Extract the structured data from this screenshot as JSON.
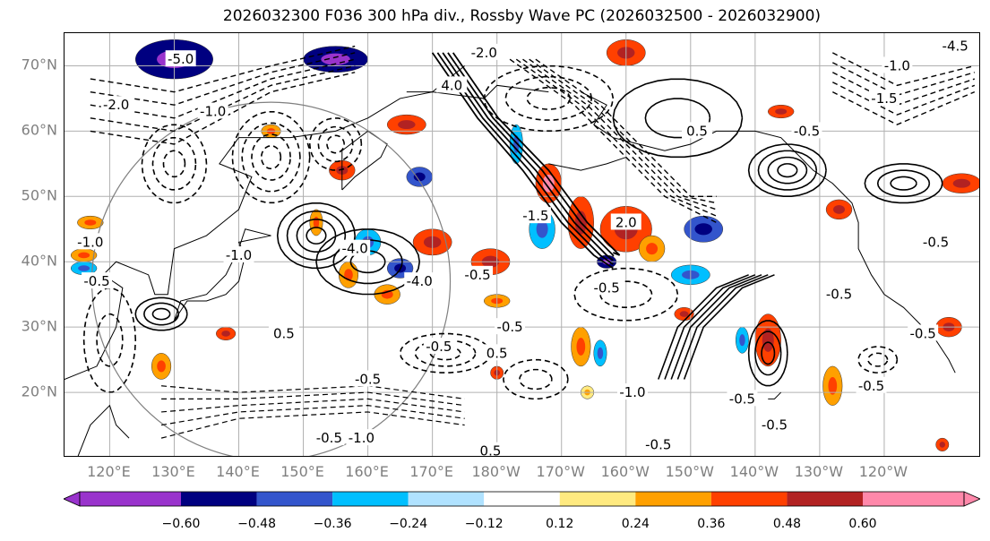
{
  "title": "2026032300 F036 300 hPa div., Rossby Wave PC (2026032500 - 2026032900)",
  "map": {
    "lat_labels": [
      "70°N",
      "60°N",
      "50°N",
      "40°N",
      "30°N",
      "20°N"
    ],
    "lat_values": [
      70,
      60,
      50,
      40,
      30,
      20
    ],
    "lon_labels": [
      "120°E",
      "130°E",
      "140°E",
      "150°E",
      "160°E",
      "170°E",
      "180°W",
      "170°W",
      "160°W",
      "150°W",
      "140°W",
      "130°W",
      "120°W"
    ],
    "lon_values": [
      120,
      130,
      140,
      150,
      160,
      170,
      180,
      190,
      200,
      210,
      220,
      230,
      240
    ],
    "lon_range": [
      113,
      255
    ],
    "lat_range": [
      10,
      75
    ],
    "contour_labels": [
      {
        "text": "-2.0",
        "lon": 121,
        "lat": 64
      },
      {
        "text": "-5.0",
        "lon": 131,
        "lat": 71
      },
      {
        "text": "-1.0",
        "lon": 136,
        "lat": 63
      },
      {
        "text": "-1.0",
        "lon": 117,
        "lat": 43
      },
      {
        "text": "-0.5",
        "lon": 118,
        "lat": 37
      },
      {
        "text": "-4.0",
        "lon": 158,
        "lat": 42
      },
      {
        "text": "-4.0",
        "lon": 168,
        "lat": 37
      },
      {
        "text": "-0.5",
        "lon": 177,
        "lat": 38
      },
      {
        "text": "-0.5",
        "lon": 171,
        "lat": 27
      },
      {
        "text": "-0.5",
        "lon": 160,
        "lat": 22
      },
      {
        "text": "0.5",
        "lon": 180,
        "lat": 26
      },
      {
        "text": "0.5",
        "lon": 147,
        "lat": 29
      },
      {
        "text": "-0.5",
        "lon": 197,
        "lat": 36
      },
      {
        "text": "-0.5",
        "lon": 182,
        "lat": 30
      },
      {
        "text": "-1.0",
        "lon": 201,
        "lat": 20
      },
      {
        "text": "-0.5",
        "lon": 218,
        "lat": 19
      },
      {
        "text": "-0.5",
        "lon": 238,
        "lat": 21
      },
      {
        "text": "-0.5",
        "lon": 223,
        "lat": 15
      },
      {
        "text": "-0.5",
        "lon": 233,
        "lat": 35
      },
      {
        "text": "-0.5",
        "lon": 246,
        "lat": 29
      },
      {
        "text": "-0.5",
        "lon": 228,
        "lat": 60
      },
      {
        "text": "-1.5",
        "lon": 240,
        "lat": 65
      },
      {
        "text": "-1.0",
        "lon": 242,
        "lat": 70
      },
      {
        "text": "-4.5",
        "lon": 251,
        "lat": 73
      },
      {
        "text": "0.5",
        "lon": 211,
        "lat": 60
      },
      {
        "text": "2.0",
        "lon": 200,
        "lat": 46
      },
      {
        "text": "-1.5",
        "lon": 186,
        "lat": 47
      },
      {
        "text": "-2.0",
        "lon": 178,
        "lat": 72
      },
      {
        "text": "4.0",
        "lon": 173,
        "lat": 67
      },
      {
        "text": "-0.5",
        "lon": 154,
        "lat": 13
      },
      {
        "text": "-1.0",
        "lon": 159,
        "lat": 13
      },
      {
        "text": "0.5",
        "lon": 179,
        "lat": 11
      },
      {
        "text": "-0.5",
        "lon": 205,
        "lat": 12
      },
      {
        "text": "-1.0",
        "lon": 140,
        "lat": 41
      },
      {
        "text": "-0.5",
        "lon": 248,
        "lat": 43
      }
    ],
    "shaded_regions": [
      {
        "lon": 130,
        "lat": 71,
        "rx": 6,
        "ry": 3,
        "value": -0.5
      },
      {
        "lon": 155,
        "lat": 71,
        "rx": 5,
        "ry": 2,
        "value": -0.5
      },
      {
        "lon": 200,
        "lat": 72,
        "rx": 3,
        "ry": 2,
        "value": 0.4
      },
      {
        "lon": 166,
        "lat": 61,
        "rx": 3,
        "ry": 1.5,
        "value": 0.4
      },
      {
        "lon": 183,
        "lat": 58,
        "rx": 1,
        "ry": 3,
        "value": -0.3
      },
      {
        "lon": 188,
        "lat": 52,
        "rx": 2,
        "ry": 3,
        "value": 0.45
      },
      {
        "lon": 187,
        "lat": 45,
        "rx": 2,
        "ry": 3,
        "value": -0.3
      },
      {
        "lon": 193,
        "lat": 46,
        "rx": 2,
        "ry": 4,
        "value": 0.4
      },
      {
        "lon": 200,
        "lat": 45,
        "rx": 4,
        "ry": 3.5,
        "value": 0.4
      },
      {
        "lon": 204,
        "lat": 42,
        "rx": 2,
        "ry": 2,
        "value": 0.3
      },
      {
        "lon": 197,
        "lat": 40,
        "rx": 1.5,
        "ry": 1,
        "value": -0.6
      },
      {
        "lon": 212,
        "lat": 45,
        "rx": 3,
        "ry": 2,
        "value": -0.4
      },
      {
        "lon": 210,
        "lat": 38,
        "rx": 3,
        "ry": 1.5,
        "value": -0.3
      },
      {
        "lon": 179,
        "lat": 40,
        "rx": 3,
        "ry": 2,
        "value": 0.4
      },
      {
        "lon": 170,
        "lat": 43,
        "rx": 3,
        "ry": 2,
        "value": 0.4
      },
      {
        "lon": 160,
        "lat": 43,
        "rx": 2,
        "ry": 2,
        "value": -0.3
      },
      {
        "lon": 165,
        "lat": 39,
        "rx": 2,
        "ry": 1.5,
        "value": -0.4
      },
      {
        "lon": 168,
        "lat": 53,
        "rx": 2,
        "ry": 1.5,
        "value": -0.4
      },
      {
        "lon": 156,
        "lat": 54,
        "rx": 2,
        "ry": 1.5,
        "value": 0.4
      },
      {
        "lon": 157,
        "lat": 38,
        "rx": 1.5,
        "ry": 2,
        "value": 0.3
      },
      {
        "lon": 163,
        "lat": 35,
        "rx": 2,
        "ry": 1.5,
        "value": 0.3
      },
      {
        "lon": 180,
        "lat": 34,
        "rx": 2,
        "ry": 1,
        "value": 0.3
      },
      {
        "lon": 193,
        "lat": 27,
        "rx": 1.5,
        "ry": 3,
        "value": 0.35
      },
      {
        "lon": 196,
        "lat": 26,
        "rx": 1,
        "ry": 2,
        "value": -0.3
      },
      {
        "lon": 222,
        "lat": 28,
        "rx": 2,
        "ry": 4,
        "value": 0.4
      },
      {
        "lon": 218,
        "lat": 28,
        "rx": 1,
        "ry": 2,
        "value": -0.3
      },
      {
        "lon": 232,
        "lat": 21,
        "rx": 1.5,
        "ry": 3,
        "value": 0.3
      },
      {
        "lon": 250,
        "lat": 30,
        "rx": 2,
        "ry": 1.5,
        "value": 0.4
      },
      {
        "lon": 252,
        "lat": 52,
        "rx": 3,
        "ry": 1.5,
        "value": 0.4
      },
      {
        "lon": 233,
        "lat": 48,
        "rx": 2,
        "ry": 1.5,
        "value": 0.4
      },
      {
        "lon": 224,
        "lat": 63,
        "rx": 2,
        "ry": 1,
        "value": 0.4
      },
      {
        "lon": 128,
        "lat": 24,
        "rx": 1.5,
        "ry": 2,
        "value": 0.3
      },
      {
        "lon": 138,
        "lat": 29,
        "rx": 1.5,
        "ry": 1,
        "value": 0.4
      },
      {
        "lon": 116,
        "lat": 41,
        "rx": 2,
        "ry": 1,
        "value": 0.3
      },
      {
        "lon": 117,
        "lat": 46,
        "rx": 2,
        "ry": 1,
        "value": 0.3
      },
      {
        "lon": 116,
        "lat": 39,
        "rx": 2,
        "ry": 1,
        "value": -0.3
      },
      {
        "lon": 152,
        "lat": 46,
        "rx": 1,
        "ry": 2,
        "value": 0.3
      },
      {
        "lon": 145,
        "lat": 60,
        "rx": 1.5,
        "ry": 1,
        "value": 0.3
      },
      {
        "lon": 209,
        "lat": 32,
        "rx": 1.5,
        "ry": 1,
        "value": 0.4
      },
      {
        "lon": 180,
        "lat": 23,
        "rx": 1,
        "ry": 1,
        "value": 0.4
      },
      {
        "lon": 194,
        "lat": 20,
        "rx": 1,
        "ry": 1,
        "value": 0.2
      },
      {
        "lon": 249,
        "lat": 12,
        "rx": 1,
        "ry": 1,
        "value": 0.4
      }
    ]
  },
  "colorbar": {
    "ticks": [
      "−0.60",
      "−0.48",
      "−0.36",
      "−0.24",
      "−0.12",
      "0.12",
      "0.24",
      "0.36",
      "0.48",
      "0.60"
    ],
    "colors": [
      "#9933cc",
      "#000080",
      "#3355cc",
      "#00bfff",
      "#b0e2ff",
      "#ffffff",
      "#ffea80",
      "#ffa000",
      "#ff4000",
      "#b22222",
      "#ff88aa"
    ]
  }
}
